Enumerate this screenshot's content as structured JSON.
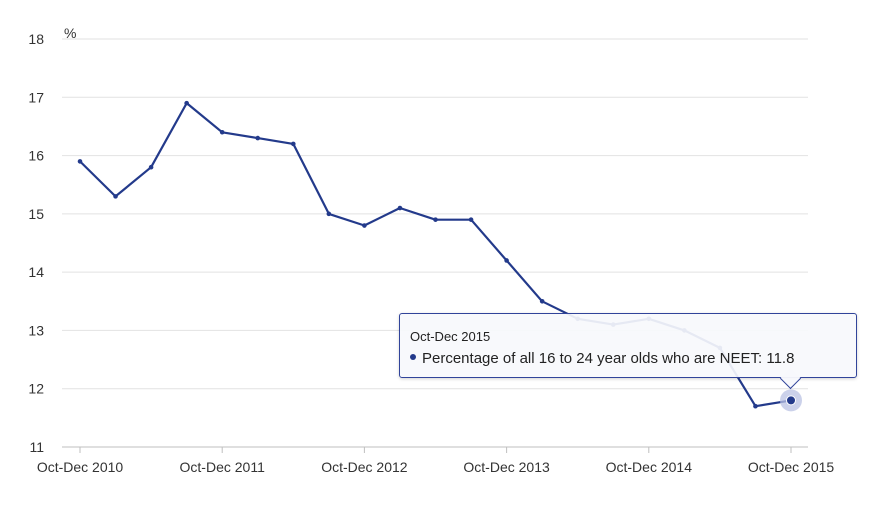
{
  "chart_data": {
    "type": "line",
    "title": "",
    "xlabel": "",
    "ylabel": "%",
    "ylim": [
      11,
      18
    ],
    "yticks": [
      11,
      12,
      13,
      14,
      15,
      16,
      17,
      18
    ],
    "xtick_labels": [
      "Oct-Dec 2010",
      "Oct-Dec 2011",
      "Oct-Dec 2012",
      "Oct-Dec 2013",
      "Oct-Dec 2014",
      "Oct-Dec 2015"
    ],
    "categories": [
      "Oct-Dec 2010",
      "Jan-Mar 2011",
      "Apr-Jun 2011",
      "Jul-Sep 2011",
      "Oct-Dec 2011",
      "Jan-Mar 2012",
      "Apr-Jun 2012",
      "Jul-Sep 2012",
      "Oct-Dec 2012",
      "Jan-Mar 2013",
      "Apr-Jun 2013",
      "Jul-Sep 2013",
      "Oct-Dec 2013",
      "Jan-Mar 2014",
      "Apr-Jun 2014",
      "Jul-Sep 2014",
      "Oct-Dec 2014",
      "Jan-Mar 2015",
      "Apr-Jun 2015",
      "Jul-Sep 2015",
      "Oct-Dec 2015"
    ],
    "series": [
      {
        "name": "Percentage of all 16 to 24 year olds who are NEET",
        "values": [
          15.9,
          15.3,
          15.8,
          16.9,
          16.4,
          16.3,
          16.2,
          15.0,
          14.8,
          15.1,
          14.9,
          14.9,
          14.2,
          13.5,
          13.2,
          13.1,
          13.2,
          13.0,
          12.7,
          11.7,
          11.8
        ]
      }
    ],
    "grid": true,
    "colors": {
      "line": "#233a8b",
      "line_faded": "#c8cde8",
      "grid": "#e2e2e2",
      "axis": "#bfbfbf",
      "text": "#333333",
      "highlight_halo": "#b9c2e3"
    }
  },
  "tooltip": {
    "title": "Oct-Dec 2015",
    "series_label": "Percentage of all 16 to 24 year olds who are NEET: 11.8"
  }
}
